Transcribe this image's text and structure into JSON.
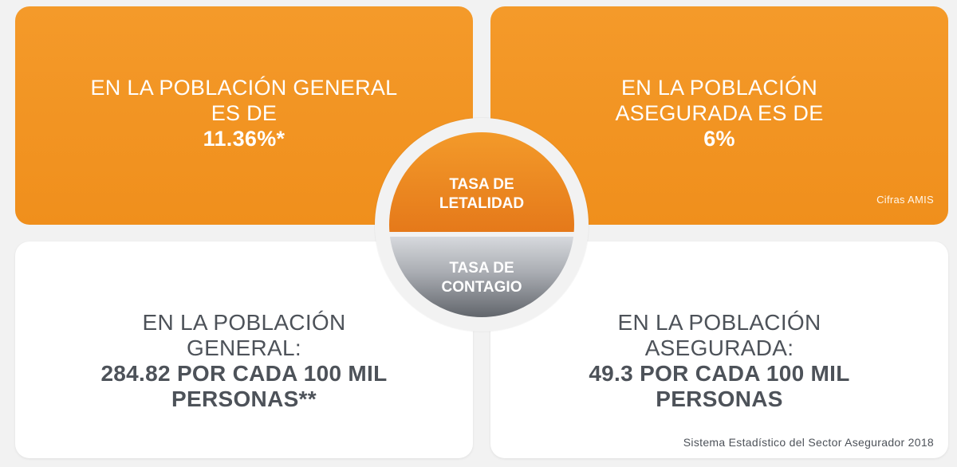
{
  "cards": {
    "top_left": {
      "lines": [
        "EN LA POBLACIÓN GENERAL",
        "ES DE"
      ],
      "value": "11.36%*"
    },
    "top_right": {
      "lines": [
        "EN LA POBLACIÓN",
        "ASEGURADA ES DE"
      ],
      "value": "6%",
      "note": "Cifras AMIS"
    },
    "bottom_left": {
      "lines": [
        "EN LA POBLACIÓN",
        "GENERAL:"
      ],
      "value_lines": [
        "284.82 POR CADA 100 MIL",
        "PERSONAS**"
      ]
    },
    "bottom_right": {
      "lines": [
        "EN LA POBLACIÓN",
        "ASEGURADA:"
      ],
      "value_lines": [
        "49.3 POR CADA 100 MIL",
        "PERSONAS"
      ],
      "note": "Sistema Estadístico del Sector Asegurador 2018"
    }
  },
  "center": {
    "top_label": [
      "TASA DE",
      "LETALIDAD"
    ],
    "bottom_label": [
      "TASA DE",
      "CONTAGIO"
    ]
  },
  "colors": {
    "orange": "#f08f1c",
    "background": "#f2f2f2",
    "dark_text": "#4d5259",
    "gray_dark": "#62666c"
  }
}
